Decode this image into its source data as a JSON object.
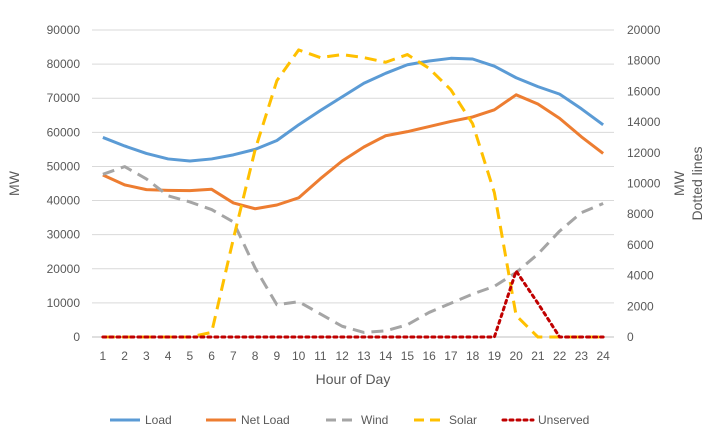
{
  "chart_data": {
    "type": "line",
    "title": "",
    "xlabel": "Hour of Day",
    "ylabel": "MW",
    "y2label_line1": "MW",
    "y2label_line2": "Dotted lines",
    "x": [
      1,
      2,
      3,
      4,
      5,
      6,
      7,
      8,
      9,
      10,
      11,
      12,
      13,
      14,
      15,
      16,
      17,
      18,
      19,
      20,
      21,
      22,
      23,
      24
    ],
    "ylim": [
      0,
      90000
    ],
    "y2lim": [
      0,
      20000
    ],
    "yticks": [
      0,
      10000,
      20000,
      30000,
      40000,
      50000,
      60000,
      70000,
      80000,
      90000
    ],
    "y2ticks": [
      0,
      2000,
      4000,
      6000,
      8000,
      10000,
      12000,
      14000,
      16000,
      18000,
      20000
    ],
    "grid": true,
    "legend": "bottom",
    "series": [
      {
        "name": "Load",
        "axis": "left",
        "style": "solid",
        "color": "#5B9BD5",
        "values": [
          58500,
          56000,
          53800,
          52200,
          51600,
          52200,
          53400,
          55000,
          57600,
          62200,
          66400,
          70400,
          74400,
          77300,
          79800,
          80900,
          81700,
          81500,
          79400,
          76000,
          73400,
          71200,
          66900,
          62200
        ]
      },
      {
        "name": "Net Load",
        "axis": "left",
        "style": "solid",
        "color": "#ED7D31",
        "values": [
          47500,
          44600,
          43200,
          43000,
          42900,
          43300,
          39300,
          37600,
          38700,
          40800,
          46400,
          51600,
          55700,
          59000,
          60200,
          61700,
          63200,
          64500,
          66600,
          71000,
          68300,
          64100,
          58700,
          53800
        ]
      },
      {
        "name": "Wind",
        "axis": "right",
        "style": "dash",
        "color": "#A5A5A5",
        "values": [
          10600,
          11100,
          10300,
          9200,
          8800,
          8300,
          7500,
          4500,
          2100,
          2300,
          1500,
          700,
          300,
          400,
          800,
          1600,
          2200,
          2800,
          3300,
          4200,
          5400,
          6900,
          8100,
          8700
        ]
      },
      {
        "name": "Solar",
        "axis": "right",
        "style": "dash",
        "color": "#FFC000",
        "values": [
          0,
          0,
          0,
          0,
          0,
          300,
          6400,
          12200,
          16700,
          18700,
          18200,
          18400,
          18200,
          17900,
          18400,
          17500,
          16100,
          13900,
          9400,
          1400,
          0,
          0,
          0,
          0
        ]
      },
      {
        "name": "Unserved",
        "axis": "right",
        "style": "dot",
        "color": "#C00000",
        "values": [
          0,
          0,
          0,
          0,
          0,
          0,
          0,
          0,
          0,
          0,
          0,
          0,
          0,
          0,
          0,
          0,
          0,
          0,
          0,
          4300,
          2200,
          0,
          0,
          0
        ]
      }
    ]
  }
}
